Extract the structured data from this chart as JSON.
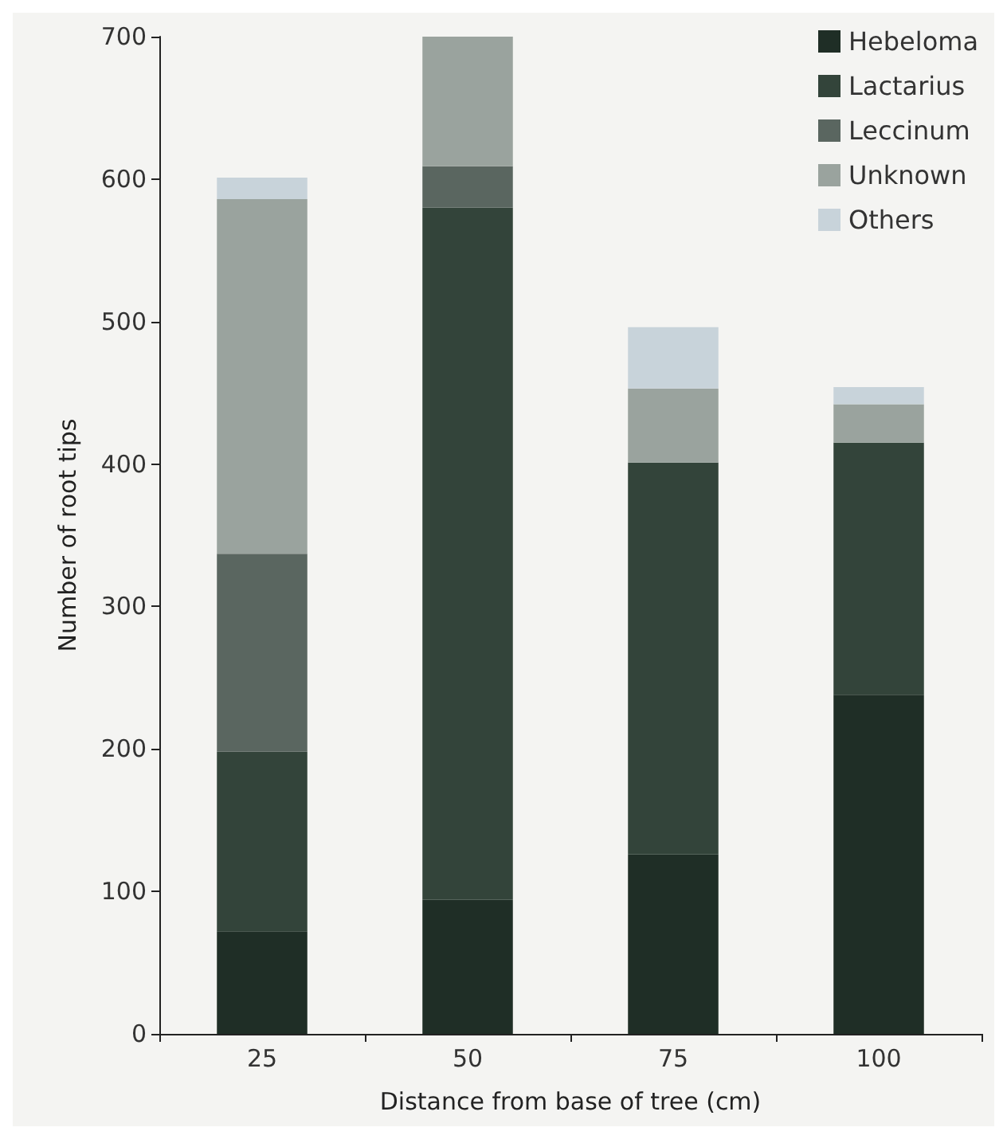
{
  "chart_data": {
    "type": "bar",
    "stacked": true,
    "xlabel": "Distance from base of tree (cm)",
    "ylabel": "Number of root tips",
    "categories": [
      "25",
      "50",
      "75",
      "100"
    ],
    "series": [
      {
        "name": "Hebeloma",
        "color": "#1f2e26",
        "values": [
          72,
          94,
          126,
          238
        ]
      },
      {
        "name": "Lactarius",
        "color": "#33443a",
        "values": [
          126,
          486,
          275,
          177
        ]
      },
      {
        "name": "Leccinum",
        "color": "#5a6660",
        "values": [
          139,
          29,
          0,
          0
        ]
      },
      {
        "name": "Unknown",
        "color": "#9aa39e",
        "values": [
          249,
          91,
          52,
          27
        ]
      },
      {
        "name": "Others",
        "color": "#c8d3da",
        "values": [
          15,
          0,
          43,
          12
        ]
      }
    ],
    "ylim": [
      0,
      700
    ],
    "yticks": [
      0,
      100,
      200,
      300,
      400,
      500,
      600,
      700
    ],
    "grid": false,
    "legend": "top right"
  }
}
